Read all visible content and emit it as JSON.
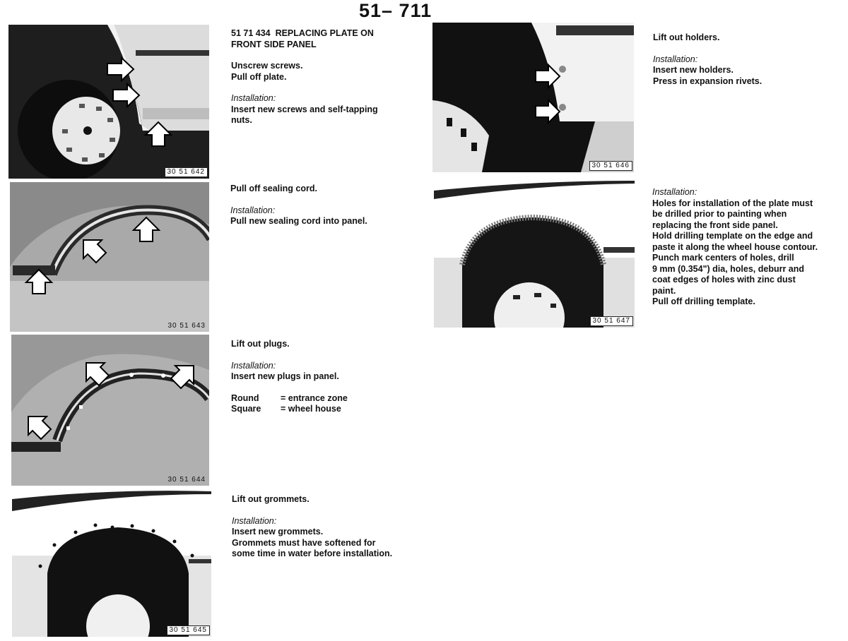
{
  "page_number": "51– 711",
  "sections": [
    {
      "figure_code": "30 51 642",
      "title_number": "51 71 434",
      "title_line1": "REPLACING PLATE ON",
      "title_line2": "FRONT SIDE PANEL",
      "steps": [
        "Unscrew screws.",
        "Pull off plate."
      ],
      "installation_label": "Installation:",
      "installation": [
        "Insert new screws and self-tapping",
        "nuts."
      ]
    },
    {
      "figure_code": "30 51 643",
      "steps": [
        "Pull off sealing cord."
      ],
      "installation_label": "Installation:",
      "installation": [
        "Pull new sealing cord into panel."
      ]
    },
    {
      "figure_code": "30 51 644",
      "steps": [
        "Lift out plugs."
      ],
      "installation_label": "Installation:",
      "installation": [
        "Insert new plugs in panel."
      ],
      "legend": [
        {
          "key": "Round",
          "value": "= entrance zone"
        },
        {
          "key": "Square",
          "value": "= wheel house"
        }
      ]
    },
    {
      "figure_code": "30 51 645",
      "steps": [
        "Lift out grommets."
      ],
      "installation_label": "Installation:",
      "installation": [
        "Insert new grommets.",
        "Grommets must have softened for",
        "some time in water before installation."
      ]
    },
    {
      "figure_code": "30 51 646",
      "steps": [
        "Lift out holders."
      ],
      "installation_label": "Installation:",
      "installation": [
        "Insert new holders.",
        "Press in expansion rivets."
      ]
    },
    {
      "figure_code": "30 51 647",
      "installation_label": "Installation:",
      "installation": [
        "Holes for installation of the plate must",
        "be drilled prior to painting when",
        "replacing the front side panel.",
        "Hold drilling template on the edge and",
        "paste it along the wheel house contour.",
        "Punch mark centers of holes, drill",
        "9  mm (0.354\") dia, holes, deburr and",
        "coat edges of holes with zinc dust",
        "paint.",
        "Pull off drilling template."
      ]
    }
  ]
}
